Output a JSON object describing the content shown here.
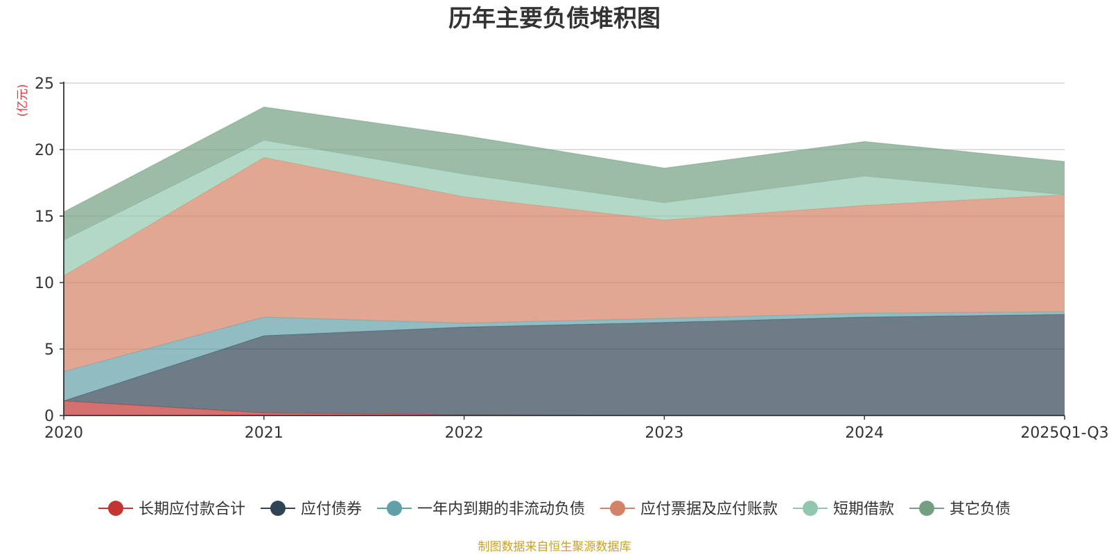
{
  "chart_data": {
    "type": "area",
    "stacked": true,
    "title": "历年主要负债堆积图",
    "unit_label": "(亿元)",
    "x": [
      "2020",
      "2021",
      "2022",
      "2023",
      "2024",
      "2025Q1-Q3"
    ],
    "ylim": [
      0,
      25
    ],
    "yticks": [
      "0",
      "5",
      "10",
      "15",
      "20",
      "25"
    ],
    "grid": true,
    "legend_position": "bottom",
    "series": [
      {
        "name": "长期应付款合计",
        "color": "#c23531",
        "values": [
          1.1,
          0.2,
          0.05,
          0.0,
          0.0,
          0.0
        ]
      },
      {
        "name": "应付债券",
        "color": "#2f4554",
        "values": [
          0.0,
          5.8,
          6.6,
          7.0,
          7.4,
          7.6
        ]
      },
      {
        "name": "一年内到期的非流动负债",
        "color": "#61a0a8",
        "values": [
          2.2,
          1.4,
          0.3,
          0.3,
          0.3,
          0.2
        ]
      },
      {
        "name": "应付票据及应付账款",
        "color": "#d48265",
        "values": [
          7.2,
          12.0,
          9.5,
          7.4,
          8.1,
          8.8
        ]
      },
      {
        "name": "短期借款",
        "color": "#91c7ae",
        "values": [
          2.7,
          1.3,
          1.7,
          1.3,
          2.2,
          0.0
        ]
      },
      {
        "name": "其它负债",
        "color": "#749f83",
        "values": [
          2.1,
          2.5,
          2.9,
          2.6,
          2.6,
          2.5
        ]
      }
    ],
    "source_note": "制图数据来自恒生聚源数据库"
  }
}
